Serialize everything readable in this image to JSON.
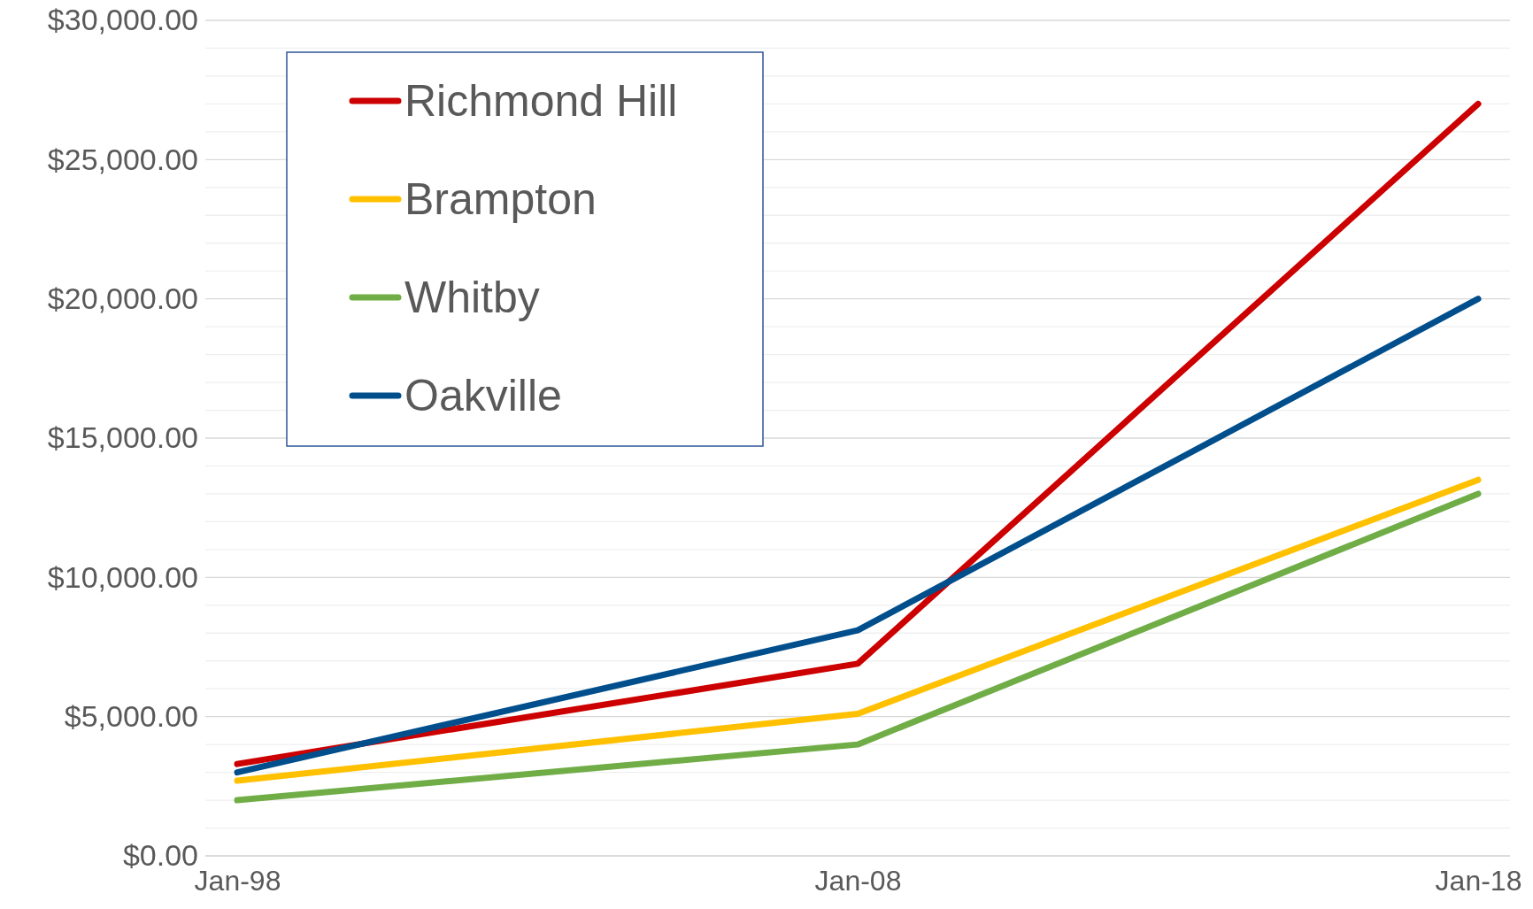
{
  "chart_data": {
    "type": "line",
    "categories": [
      "Jan-98",
      "Jan-08",
      "Jan-18"
    ],
    "series": [
      {
        "name": "Richmond Hill",
        "color": "#cc0000",
        "values": [
          3300,
          6900,
          27000
        ]
      },
      {
        "name": "Brampton",
        "color": "#ffc000",
        "values": [
          2700,
          5100,
          13500
        ]
      },
      {
        "name": "Whitby",
        "color": "#70ad47",
        "values": [
          2000,
          4000,
          13000
        ]
      },
      {
        "name": "Oakville",
        "color": "#004f8c",
        "values": [
          3000,
          8100,
          20000
        ]
      }
    ],
    "ylim": [
      0,
      30000
    ],
    "yticks": [
      {
        "value": 0,
        "label": "$0.00"
      },
      {
        "value": 1000,
        "label": null
      },
      {
        "value": 2000,
        "label": null
      },
      {
        "value": 3000,
        "label": null
      },
      {
        "value": 4000,
        "label": null
      },
      {
        "value": 5000,
        "label": "$5,000.00"
      },
      {
        "value": 6000,
        "label": null
      },
      {
        "value": 7000,
        "label": null
      },
      {
        "value": 8000,
        "label": null
      },
      {
        "value": 9000,
        "label": null
      },
      {
        "value": 10000,
        "label": "$10,000.00"
      },
      {
        "value": 11000,
        "label": null
      },
      {
        "value": 12000,
        "label": null
      },
      {
        "value": 13000,
        "label": null
      },
      {
        "value": 14000,
        "label": null
      },
      {
        "value": 15000,
        "label": "$15,000.00"
      },
      {
        "value": 16000,
        "label": null
      },
      {
        "value": 17000,
        "label": null
      },
      {
        "value": 18000,
        "label": null
      },
      {
        "value": 19000,
        "label": null
      },
      {
        "value": 20000,
        "label": "$20,000.00"
      },
      {
        "value": 21000,
        "label": null
      },
      {
        "value": 22000,
        "label": null
      },
      {
        "value": 23000,
        "label": null
      },
      {
        "value": 24000,
        "label": null
      },
      {
        "value": 25000,
        "label": "$25,000.00"
      },
      {
        "value": 26000,
        "label": null
      },
      {
        "value": 27000,
        "label": null
      },
      {
        "value": 28000,
        "label": null
      },
      {
        "value": 29000,
        "label": null
      },
      {
        "value": 30000,
        "label": "$30,000.00"
      }
    ],
    "grid": "y",
    "legend": "top left",
    "line_style": "solid",
    "marker": "none"
  }
}
